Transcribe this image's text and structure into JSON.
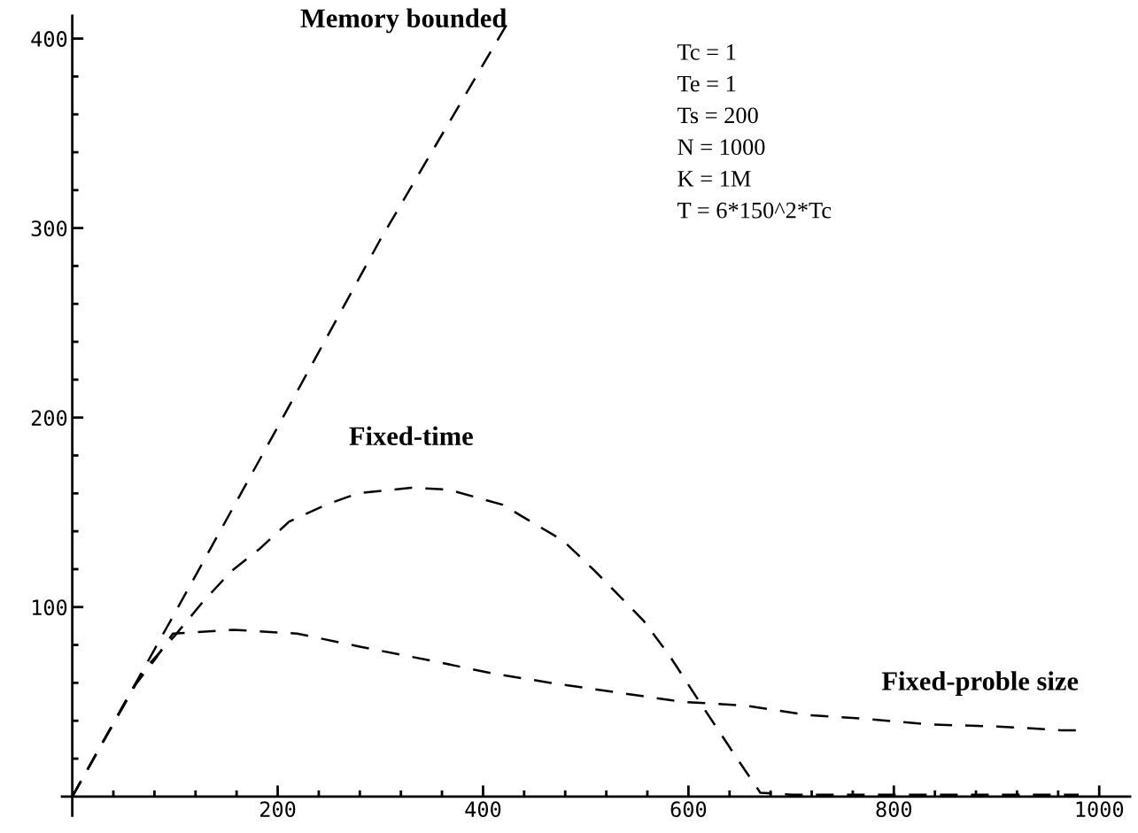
{
  "chart_data": {
    "type": "line",
    "xlim": [
      -10,
      1030
    ],
    "ylim": [
      -10,
      412
    ],
    "xticks": [
      {
        "value": 40,
        "label": null
      },
      {
        "value": 80,
        "label": null
      },
      {
        "value": 120,
        "label": null
      },
      {
        "value": 160,
        "label": null
      },
      200,
      {
        "value": 240,
        "label": null
      },
      {
        "value": 280,
        "label": null
      },
      {
        "value": 320,
        "label": null
      },
      {
        "value": 360,
        "label": null
      },
      400,
      {
        "value": 440,
        "label": null
      },
      {
        "value": 480,
        "label": null
      },
      {
        "value": 520,
        "label": null
      },
      {
        "value": 560,
        "label": null
      },
      600,
      {
        "value": 640,
        "label": null
      },
      {
        "value": 680,
        "label": null
      },
      {
        "value": 720,
        "label": null
      },
      {
        "value": 760,
        "label": null
      },
      800,
      {
        "value": 840,
        "label": null
      },
      {
        "value": 880,
        "label": null
      },
      {
        "value": 920,
        "label": null
      },
      {
        "value": 960,
        "label": null
      },
      1000
    ],
    "yticks": [
      {
        "value": 20,
        "label": null
      },
      {
        "value": 40,
        "label": null
      },
      {
        "value": 60,
        "label": null
      },
      {
        "value": 80,
        "label": null
      },
      100,
      {
        "value": 120,
        "label": null
      },
      {
        "value": 140,
        "label": null
      },
      {
        "value": 160,
        "label": null
      },
      {
        "value": 180,
        "label": null
      },
      200,
      {
        "value": 220,
        "label": null
      },
      {
        "value": 240,
        "label": null
      },
      {
        "value": 260,
        "label": null
      },
      {
        "value": 280,
        "label": null
      },
      300,
      {
        "value": 320,
        "label": null
      },
      {
        "value": 340,
        "label": null
      },
      {
        "value": 360,
        "label": null
      },
      {
        "value": 380,
        "label": null
      },
      400
    ],
    "grid": false,
    "legend": false,
    "line_style": "dashed",
    "marker": "none",
    "series": [
      {
        "name": "Memory bounded",
        "color": "#000000",
        "x": [
          0,
          100,
          200,
          300,
          428
        ],
        "values": [
          0,
          97,
          195,
          294,
          412
        ]
      },
      {
        "name": "Fixed-time",
        "color": "#000000",
        "x": [
          0,
          70,
          100,
          126,
          155,
          183,
          211,
          247,
          278,
          330,
          366,
          419,
          478,
          509,
          556,
          582,
          612,
          645,
          670,
          700,
          800,
          900,
          980
        ],
        "values": [
          0,
          67,
          85,
          102,
          119,
          131,
          145,
          154,
          160,
          163,
          162,
          154,
          135,
          119,
          93,
          74,
          49,
          22,
          2,
          1,
          1,
          1,
          1
        ]
      },
      {
        "name": "Fixed-proble size",
        "color": "#000000",
        "x": [
          0,
          60,
          80,
          98,
          157,
          219,
          281,
          347,
          409,
          466,
          530,
          594,
          655,
          717,
          773,
          837,
          901,
          963,
          980
        ],
        "values": [
          0,
          58,
          72,
          86,
          88,
          86,
          79,
          72,
          65,
          60,
          55,
          50,
          48,
          43,
          41,
          38,
          37,
          35,
          35
        ]
      }
    ],
    "annotations": [
      "Tc = 1",
      "Te = 1",
      "Ts = 200",
      "N = 1000",
      "K = 1M",
      "T = 6*150^2*Tc"
    ]
  }
}
